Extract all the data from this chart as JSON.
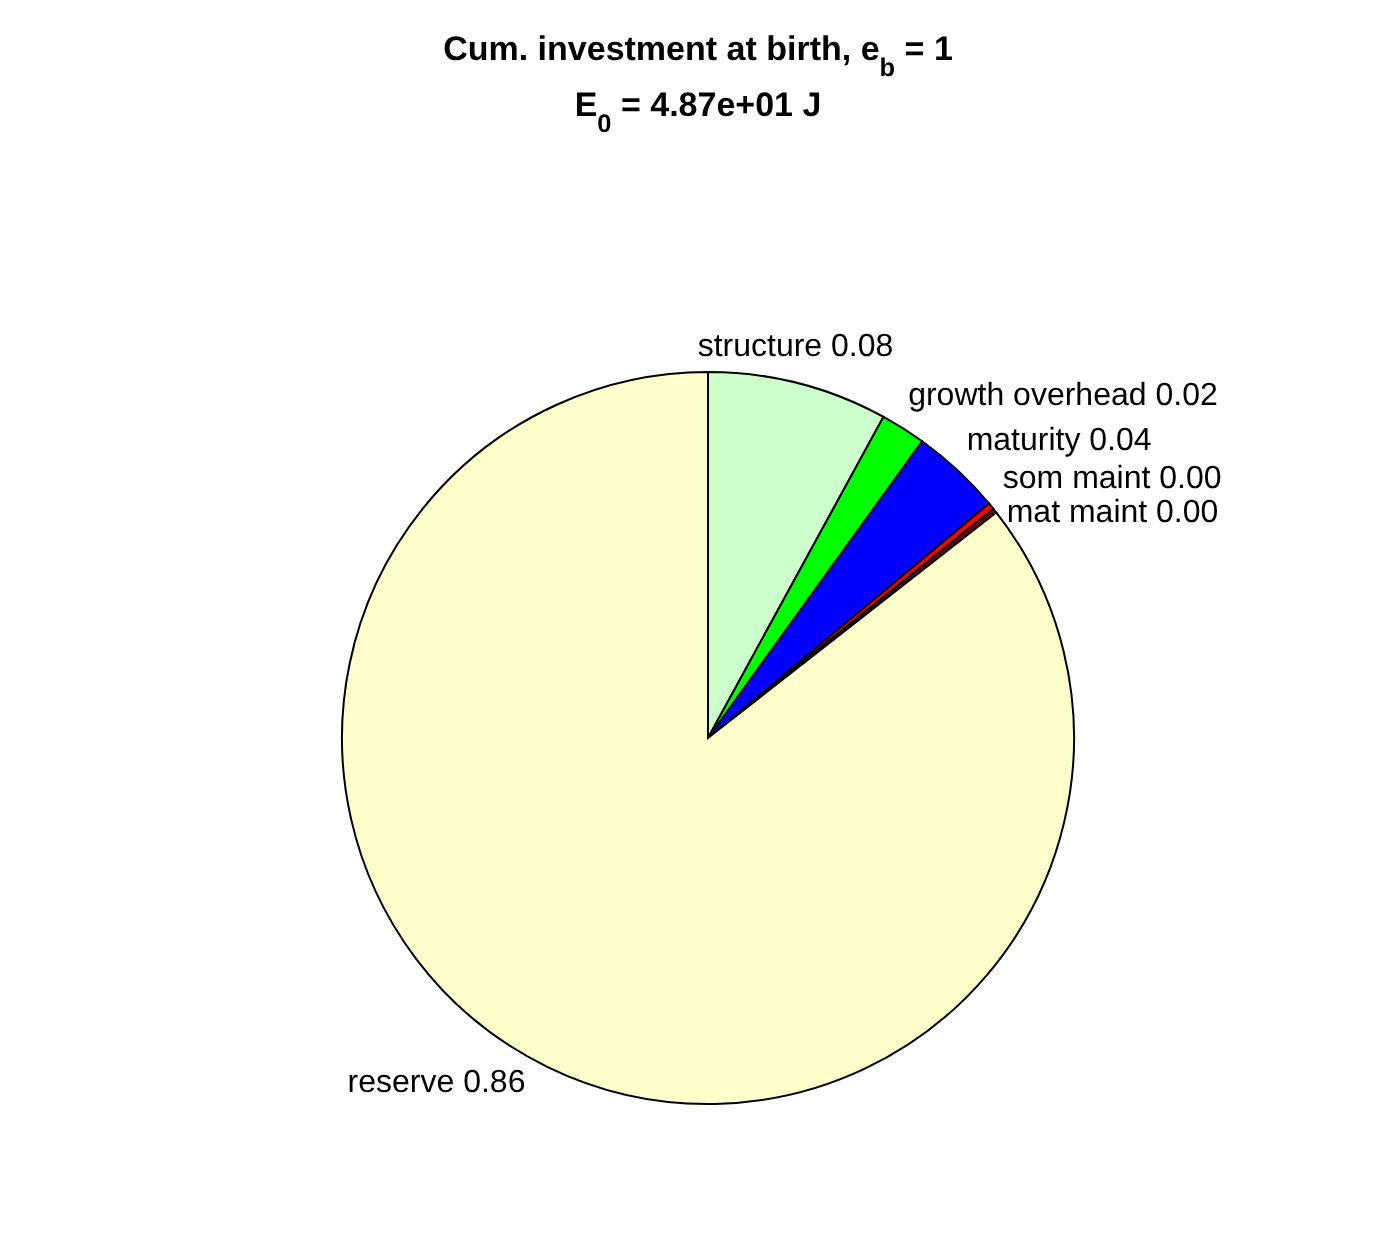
{
  "chart_data": {
    "type": "pie",
    "title": "Cum. investment at birth, e$_{b}$ = 1",
    "subtitle": "E$_{0}$ = 4.87e+01 J",
    "categories": [
      "structure",
      "growth overhead",
      "maturity",
      "som maint",
      "mat maint",
      "reserve"
    ],
    "values": [
      0.08,
      0.02,
      0.04,
      0.003,
      0.002,
      0.86
    ],
    "value_labels": [
      "0.08",
      "0.02",
      "0.04",
      "0.00",
      "0.00",
      "0.86"
    ],
    "colors": [
      "#ccffcc",
      "#00ff00",
      "#0000ff",
      "#ff0000",
      "#800000",
      "#ffffcc"
    ],
    "legend": false
  }
}
